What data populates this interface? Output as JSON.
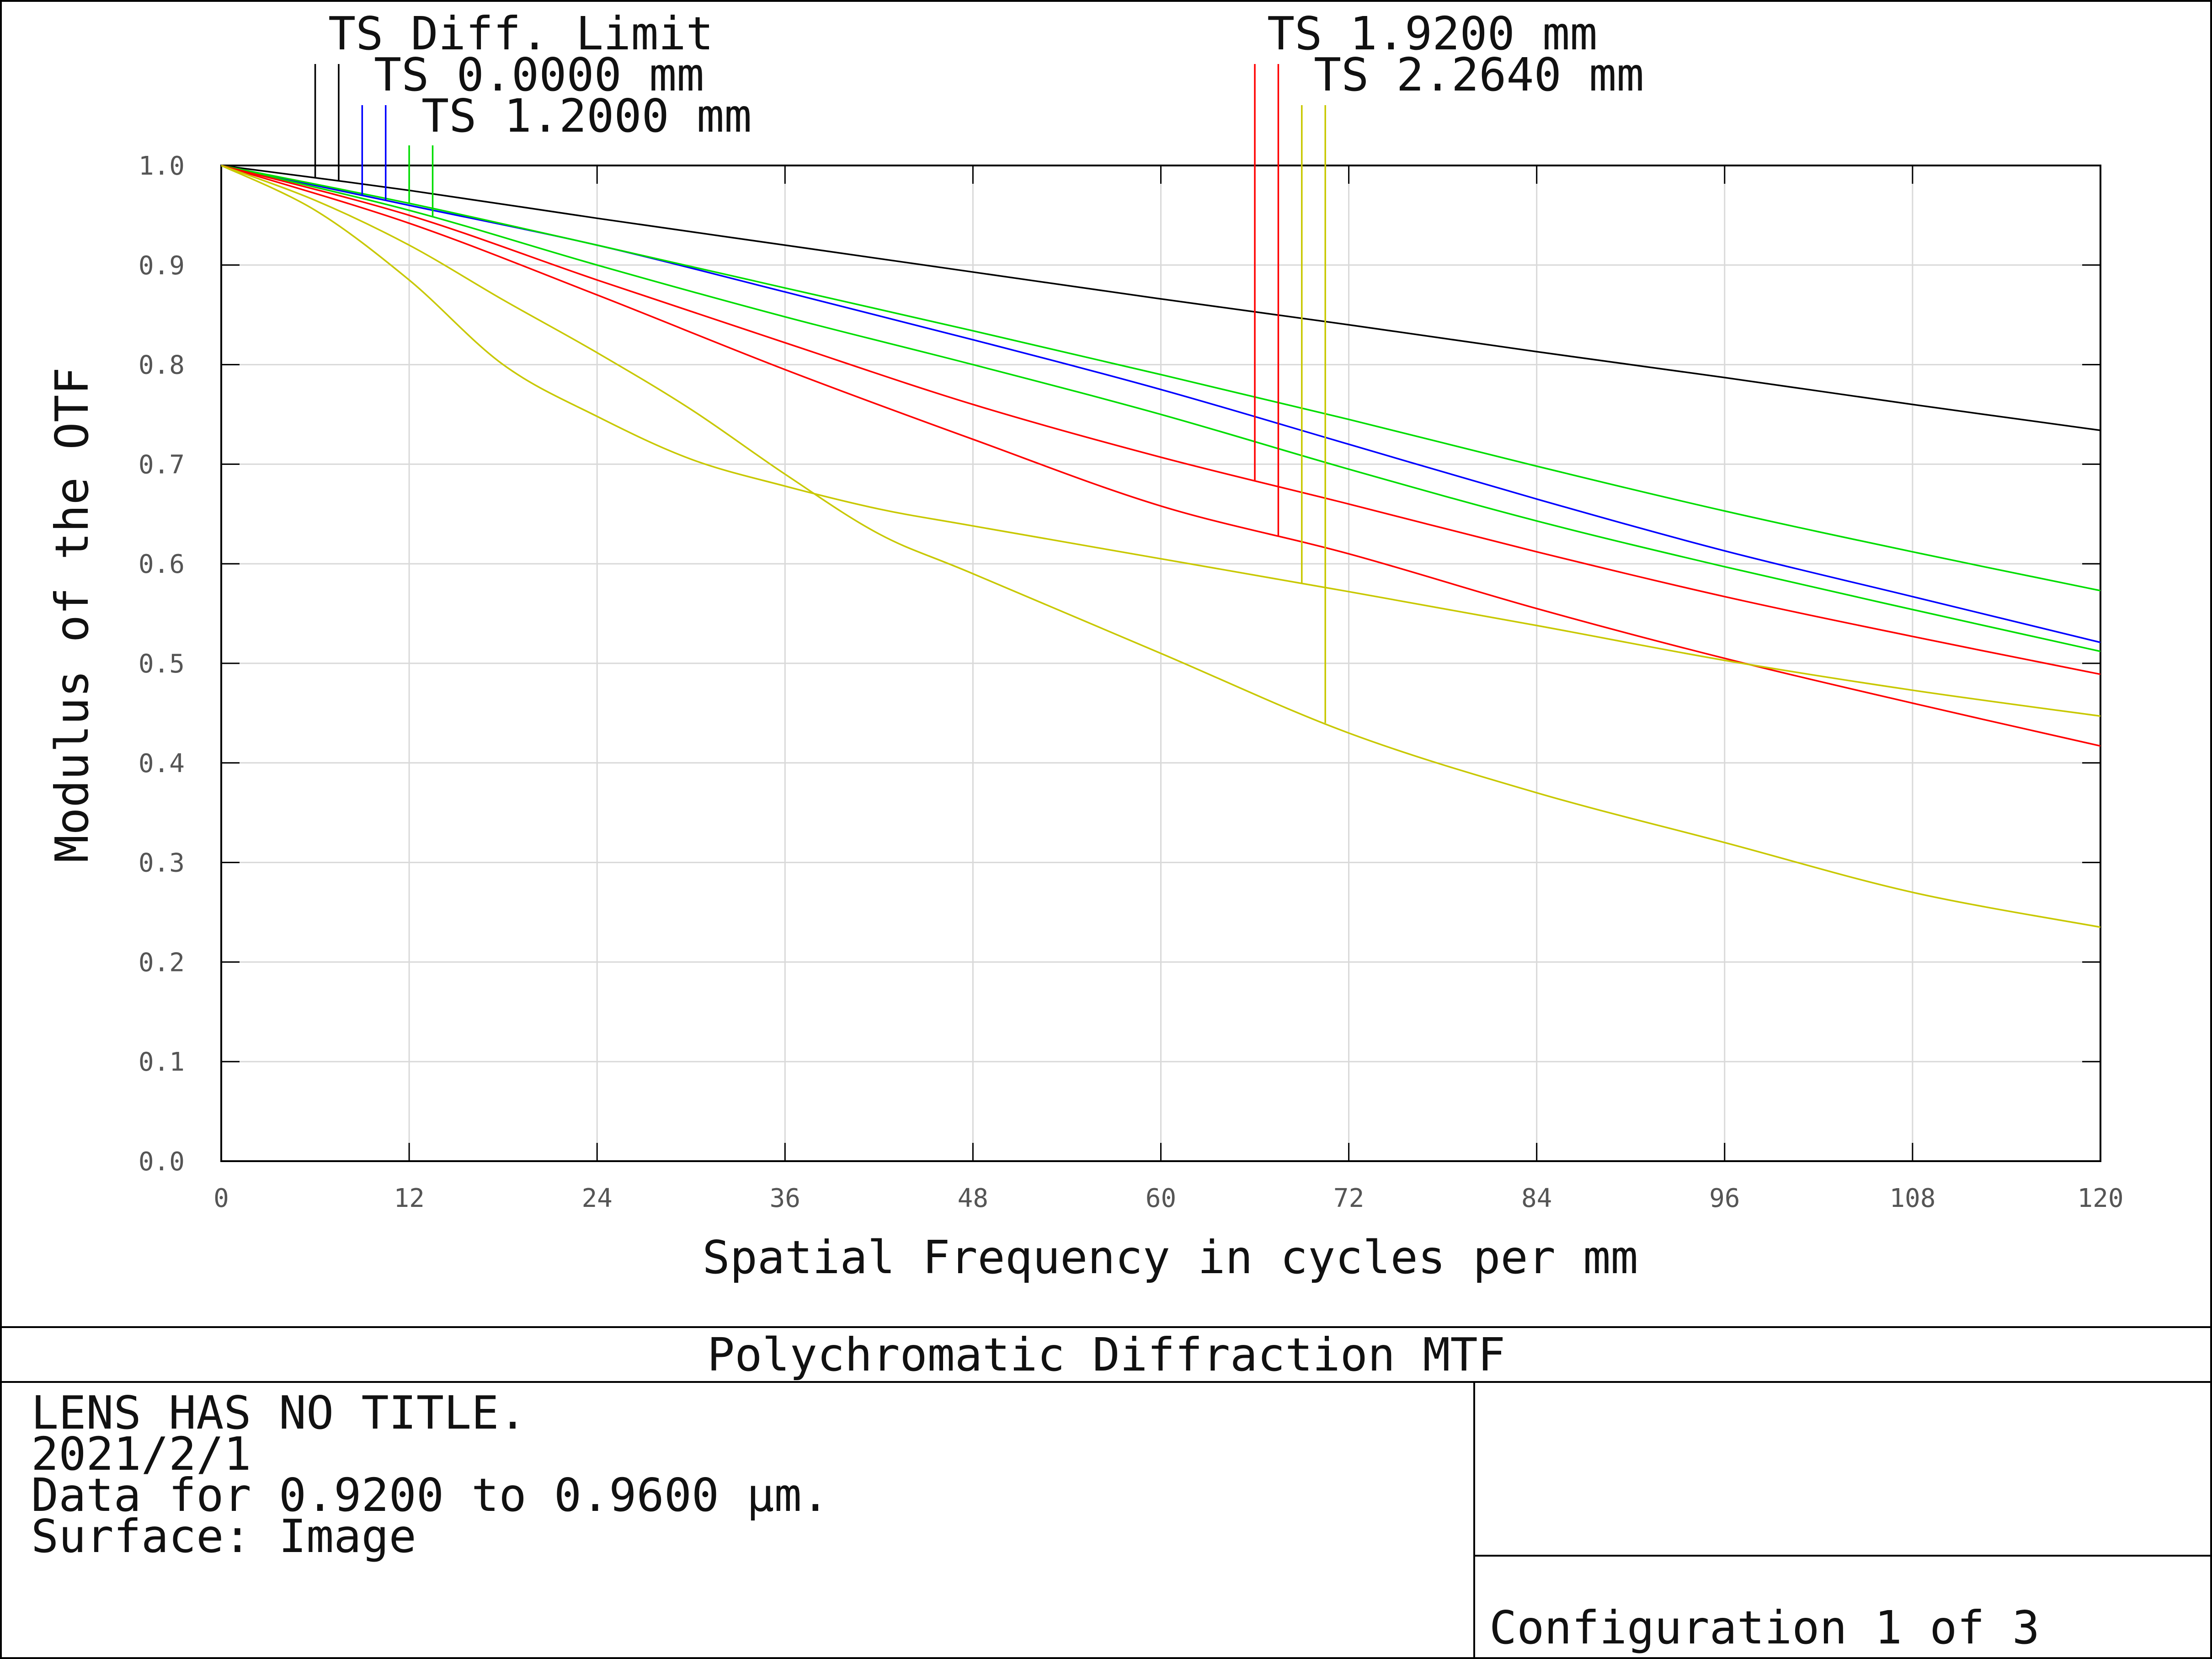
{
  "chart_data": {
    "type": "line",
    "title": "Polychromatic Diffraction MTF",
    "xlabel": "Spatial Frequency in cycles per mm",
    "ylabel": "Modulus of the OTF",
    "xlim": [
      0,
      120
    ],
    "ylim": [
      0,
      1
    ],
    "xticks": [
      "0",
      "12",
      "24",
      "36",
      "48",
      "60",
      "72",
      "84",
      "96",
      "108",
      "120"
    ],
    "yticks": [
      "0.0",
      "0.1",
      "0.2",
      "0.3",
      "0.4",
      "0.5",
      "0.6",
      "0.7",
      "0.8",
      "0.9",
      "1.0"
    ],
    "grid": true,
    "legend": [
      {
        "label": "TS Diff. Limit",
        "color": "#000000",
        "markers_x": [
          6,
          7.5
        ]
      },
      {
        "label": "TS 0.0000 mm",
        "color": "#0000ff",
        "markers_x": [
          9,
          10.5
        ]
      },
      {
        "label": "TS 1.2000 mm",
        "color": "#00dd00",
        "markers_x": [
          12,
          13.5
        ]
      },
      {
        "label": "TS 1.9200 mm",
        "color": "#ff0000",
        "markers_x": [
          66,
          67.5
        ]
      },
      {
        "label": "TS 2.2640 mm",
        "color": "#c8c800",
        "markers_x": [
          69,
          70.5
        ]
      }
    ],
    "series": [
      {
        "color": "#000000",
        "x": [
          0,
          12,
          24,
          36,
          48,
          60,
          72,
          84,
          96,
          108,
          120
        ],
        "y": [
          1.0,
          0.975,
          0.947,
          0.92,
          0.893,
          0.866,
          0.84,
          0.813,
          0.787,
          0.76,
          0.734
        ]
      },
      {
        "color": "#0000ff",
        "x": [
          0,
          12,
          24,
          36,
          48,
          60,
          72,
          84,
          96,
          108,
          120
        ],
        "y": [
          1.0,
          0.96,
          0.92,
          0.873,
          0.825,
          0.775,
          0.72,
          0.665,
          0.613,
          0.567,
          0.521
        ]
      },
      {
        "color": "#00dd00",
        "x": [
          0,
          12,
          24,
          36,
          48,
          60,
          72,
          84,
          96,
          108,
          120
        ],
        "y": [
          1.0,
          0.962,
          0.92,
          0.877,
          0.834,
          0.79,
          0.745,
          0.698,
          0.653,
          0.612,
          0.573
        ]
      },
      {
        "color": "#00dd00",
        "x": [
          0,
          12,
          24,
          36,
          48,
          60,
          72,
          84,
          96,
          108,
          120
        ],
        "y": [
          1.0,
          0.955,
          0.9,
          0.848,
          0.8,
          0.75,
          0.695,
          0.643,
          0.597,
          0.554,
          0.512
        ]
      },
      {
        "color": "#ff0000",
        "x": [
          0,
          12,
          24,
          36,
          48,
          60,
          72,
          84,
          96,
          108,
          120
        ],
        "y": [
          1.0,
          0.95,
          0.885,
          0.822,
          0.76,
          0.707,
          0.66,
          0.612,
          0.567,
          0.527,
          0.489
        ]
      },
      {
        "color": "#ff0000",
        "x": [
          0,
          12,
          24,
          36,
          48,
          60,
          72,
          84,
          96,
          108,
          120
        ],
        "y": [
          1.0,
          0.942,
          0.87,
          0.795,
          0.725,
          0.658,
          0.61,
          0.555,
          0.505,
          0.46,
          0.417
        ]
      },
      {
        "color": "#c8c800",
        "x": [
          0,
          6,
          12,
          18,
          24,
          30,
          36,
          42,
          48,
          60,
          72,
          84,
          96,
          108,
          120
        ],
        "y": [
          1.0,
          0.955,
          0.885,
          0.8,
          0.748,
          0.705,
          0.678,
          0.655,
          0.638,
          0.605,
          0.572,
          0.538,
          0.503,
          0.473,
          0.447
        ]
      },
      {
        "color": "#c8c800",
        "x": [
          0,
          6,
          12,
          18,
          24,
          30,
          36,
          42,
          48,
          60,
          72,
          84,
          96,
          108,
          120
        ],
        "y": [
          1.0,
          0.965,
          0.92,
          0.865,
          0.812,
          0.755,
          0.69,
          0.63,
          0.59,
          0.51,
          0.43,
          0.37,
          0.32,
          0.27,
          0.235
        ]
      }
    ]
  },
  "footer": {
    "title": "Polychromatic Diffraction MTF",
    "lines": [
      "LENS HAS NO TITLE.",
      "2021/2/1",
      "Data for 0.9200 to 0.9600 µm.",
      "Surface: Image"
    ],
    "configuration": "Configuration 1 of 3"
  }
}
